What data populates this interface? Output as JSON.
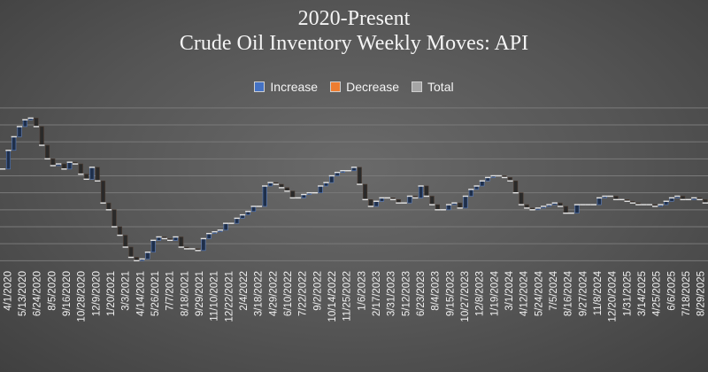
{
  "chart_data": {
    "type": "waterfall",
    "title": "2020-Present",
    "subtitle": "Crude Oil Inventory Weekly Moves:  API",
    "legend": [
      {
        "name": "Increase",
        "color": "#4472c4"
      },
      {
        "name": "Decrease",
        "color": "#ed7d31"
      },
      {
        "name": "Total",
        "color": "#a5a5a5"
      }
    ],
    "legend_position": "top",
    "gridlines": true,
    "x_tick_labels": [
      "4/1/2020",
      "5/13/2020",
      "6/24/2020",
      "8/5/2020",
      "9/16/2020",
      "10/28/2020",
      "12/9/2020",
      "1/20/2021",
      "3/3/2021",
      "4/14/2021",
      "5/26/2021",
      "7/7/2021",
      "8/18/2021",
      "9/29/2021",
      "11/10/2021",
      "12/22/2021",
      "2/4/2022",
      "3/18/2022",
      "4/29/2022",
      "6/10/2022",
      "7/22/2022",
      "9/2/2022",
      "10/14/2022",
      "11/25/2022",
      "1/6/2023",
      "2/17/2023",
      "3/31/2023",
      "5/12/2023",
      "6/23/2023",
      "8/4/2023",
      "9/15/2023",
      "10/27/2023",
      "12/8/2023",
      "1/19/2024",
      "3/1/2024",
      "4/12/2024",
      "5/24/2024",
      "7/5/2024",
      "8/16/2024",
      "9/27/2024",
      "11/8/2024",
      "12/20/2024",
      "1/31/2025",
      "3/14/2025",
      "4/25/2025",
      "6/6/2025",
      "7/18/2025",
      "8/29/2025"
    ],
    "cumulative_level": [
      7.0,
      12.5,
      16.5,
      19.5,
      21.5,
      22.0,
      19.5,
      14.0,
      10.0,
      8.0,
      8.5,
      7.0,
      9.0,
      8.5,
      5.5,
      4.0,
      7.5,
      3.5,
      -3.0,
      -5.0,
      -10.0,
      -12.5,
      -16.0,
      -19.0,
      -20.0,
      -19.5,
      -17.5,
      -14.0,
      -13.0,
      -13.5,
      -14.0,
      -13.0,
      -16.0,
      -16.5,
      -16.5,
      -17.0,
      -13.5,
      -12.0,
      -11.5,
      -11.0,
      -9.0,
      -9.0,
      -7.5,
      -6.5,
      -5.5,
      -4.0,
      -4.0,
      2.0,
      3.0,
      2.5,
      1.5,
      0.5,
      -1.5,
      -1.5,
      -0.5,
      0.0,
      0.0,
      2.0,
      3.0,
      5.0,
      6.0,
      6.5,
      6.5,
      7.5,
      2.5,
      -2.0,
      -4.0,
      -2.5,
      -1.5,
      -1.5,
      -2.0,
      -3.0,
      -3.0,
      -1.0,
      -1.5,
      2.0,
      -1.0,
      -3.5,
      -5.0,
      -5.0,
      -3.5,
      -3.0,
      -4.5,
      -1.0,
      1.0,
      2.0,
      3.5,
      4.5,
      5.0,
      5.0,
      4.5,
      3.5,
      0.0,
      -3.5,
      -4.5,
      -5.0,
      -4.5,
      -4.0,
      -3.5,
      -3.0,
      -4.0,
      -6.0,
      -6.0,
      -3.5,
      -3.5,
      -3.5,
      -3.5,
      -1.5,
      -1.0,
      -1.0,
      -2.0,
      -2.0,
      -2.5,
      -3.0,
      -3.5,
      -3.5,
      -3.5,
      -4.0,
      -3.5,
      -2.5,
      -1.5,
      -1.0,
      -2.0,
      -2.0,
      -1.5,
      -2.0,
      -3.0
    ]
  }
}
